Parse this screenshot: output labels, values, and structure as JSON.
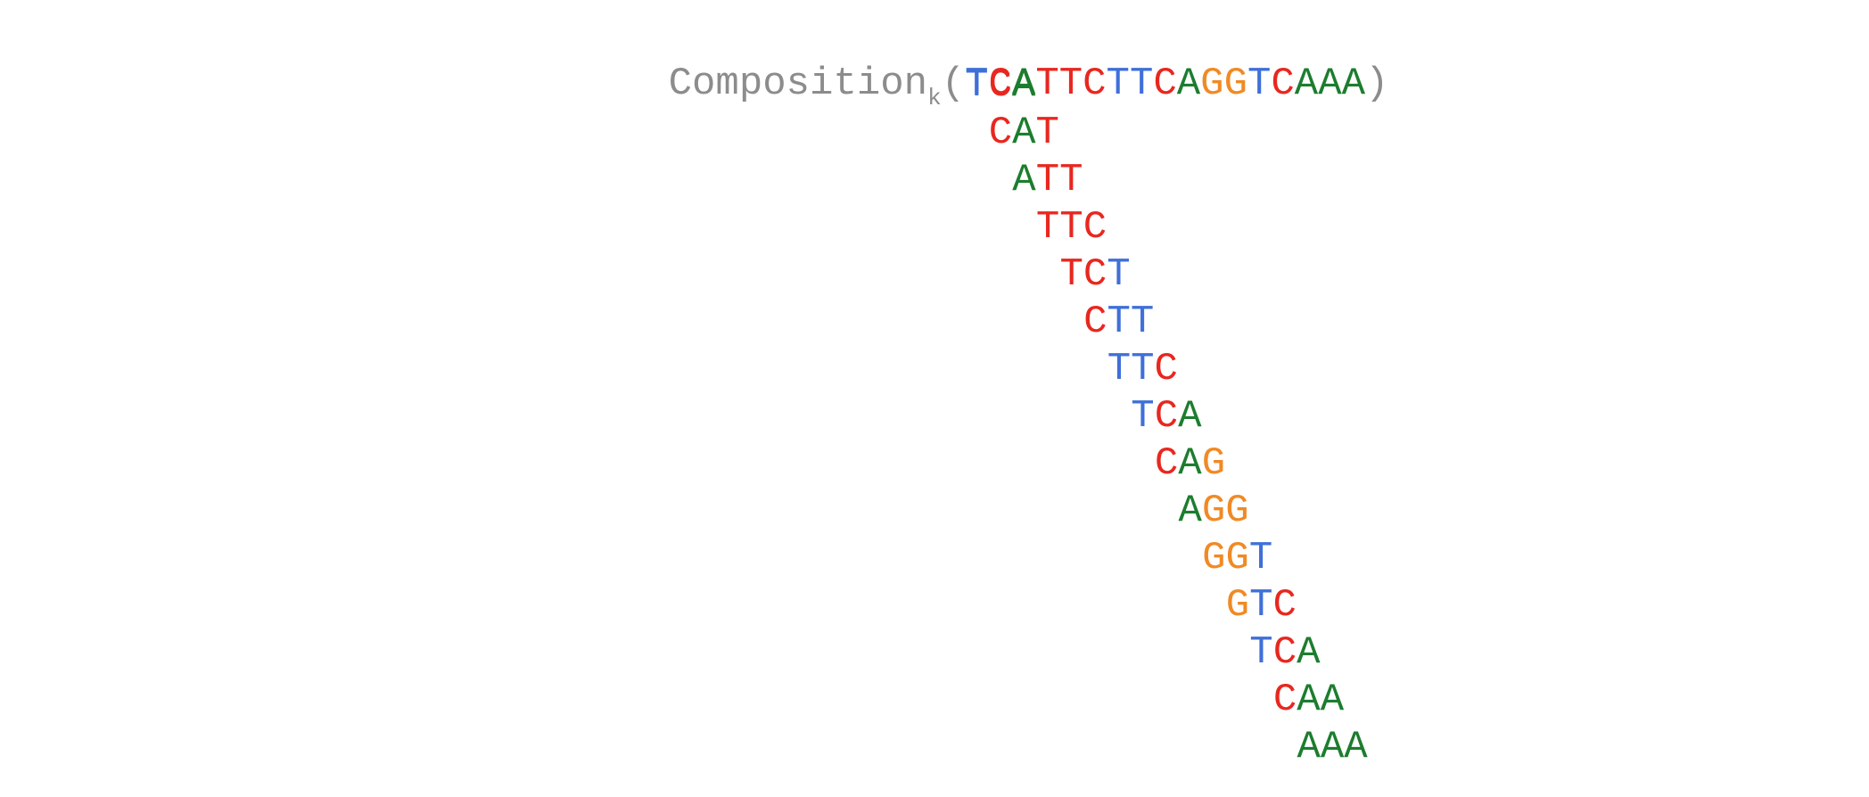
{
  "title": {
    "label": "Composition",
    "subscript": "k",
    "open_paren": "(",
    "close_paren": ")",
    "sequence": "TCATTCTTCAGGTCAAA"
  },
  "kmers": [
    {
      "text": "TCA",
      "colors": [
        "#3f6fd8",
        "#e8271f",
        "#1c7d2e"
      ]
    },
    {
      "text": "CAT",
      "colors": [
        "#e8271f",
        "#1c7d2e",
        "#e8271f"
      ]
    },
    {
      "text": "ATT",
      "colors": [
        "#1c7d2e",
        "#e8271f",
        "#e8271f"
      ]
    },
    {
      "text": "TTC",
      "colors": [
        "#e8271f",
        "#e8271f",
        "#e8271f"
      ]
    },
    {
      "text": "TCT",
      "colors": [
        "#e8271f",
        "#e8271f",
        "#3f6fd8"
      ]
    },
    {
      "text": "CTT",
      "colors": [
        "#e8271f",
        "#3f6fd8",
        "#3f6fd8"
      ]
    },
    {
      "text": "TTC",
      "colors": [
        "#3f6fd8",
        "#3f6fd8",
        "#e8271f"
      ]
    },
    {
      "text": "TCA",
      "colors": [
        "#3f6fd8",
        "#e8271f",
        "#1c7d2e"
      ]
    },
    {
      "text": "CAG",
      "colors": [
        "#e8271f",
        "#1c7d2e",
        "#f08a24"
      ]
    },
    {
      "text": "AGG",
      "colors": [
        "#1c7d2e",
        "#f08a24",
        "#f08a24"
      ]
    },
    {
      "text": "GGT",
      "colors": [
        "#f08a24",
        "#f08a24",
        "#3f6fd8"
      ]
    },
    {
      "text": "GTC",
      "colors": [
        "#f08a24",
        "#3f6fd8",
        "#e8271f"
      ]
    },
    {
      "text": "TCA",
      "colors": [
        "#3f6fd8",
        "#e8271f",
        "#1c7d2e"
      ]
    },
    {
      "text": "CAA",
      "colors": [
        "#e8271f",
        "#1c7d2e",
        "#1c7d2e"
      ]
    },
    {
      "text": "AAA",
      "colors": [
        "#1c7d2e",
        "#1c7d2e",
        "#1c7d2e"
      ]
    }
  ],
  "sequence_colors": [
    "#3f6fd8",
    "#e8271f",
    "#1c7d2e",
    "#e8271f",
    "#e8271f",
    "#e8271f",
    "#3f6fd8",
    "#3f6fd8",
    "#e8271f",
    "#1c7d2e",
    "#f08a24",
    "#f08a24",
    "#3f6fd8",
    "#e8271f",
    "#1c7d2e",
    "#1c7d2e",
    "#1c7d2e"
  ]
}
